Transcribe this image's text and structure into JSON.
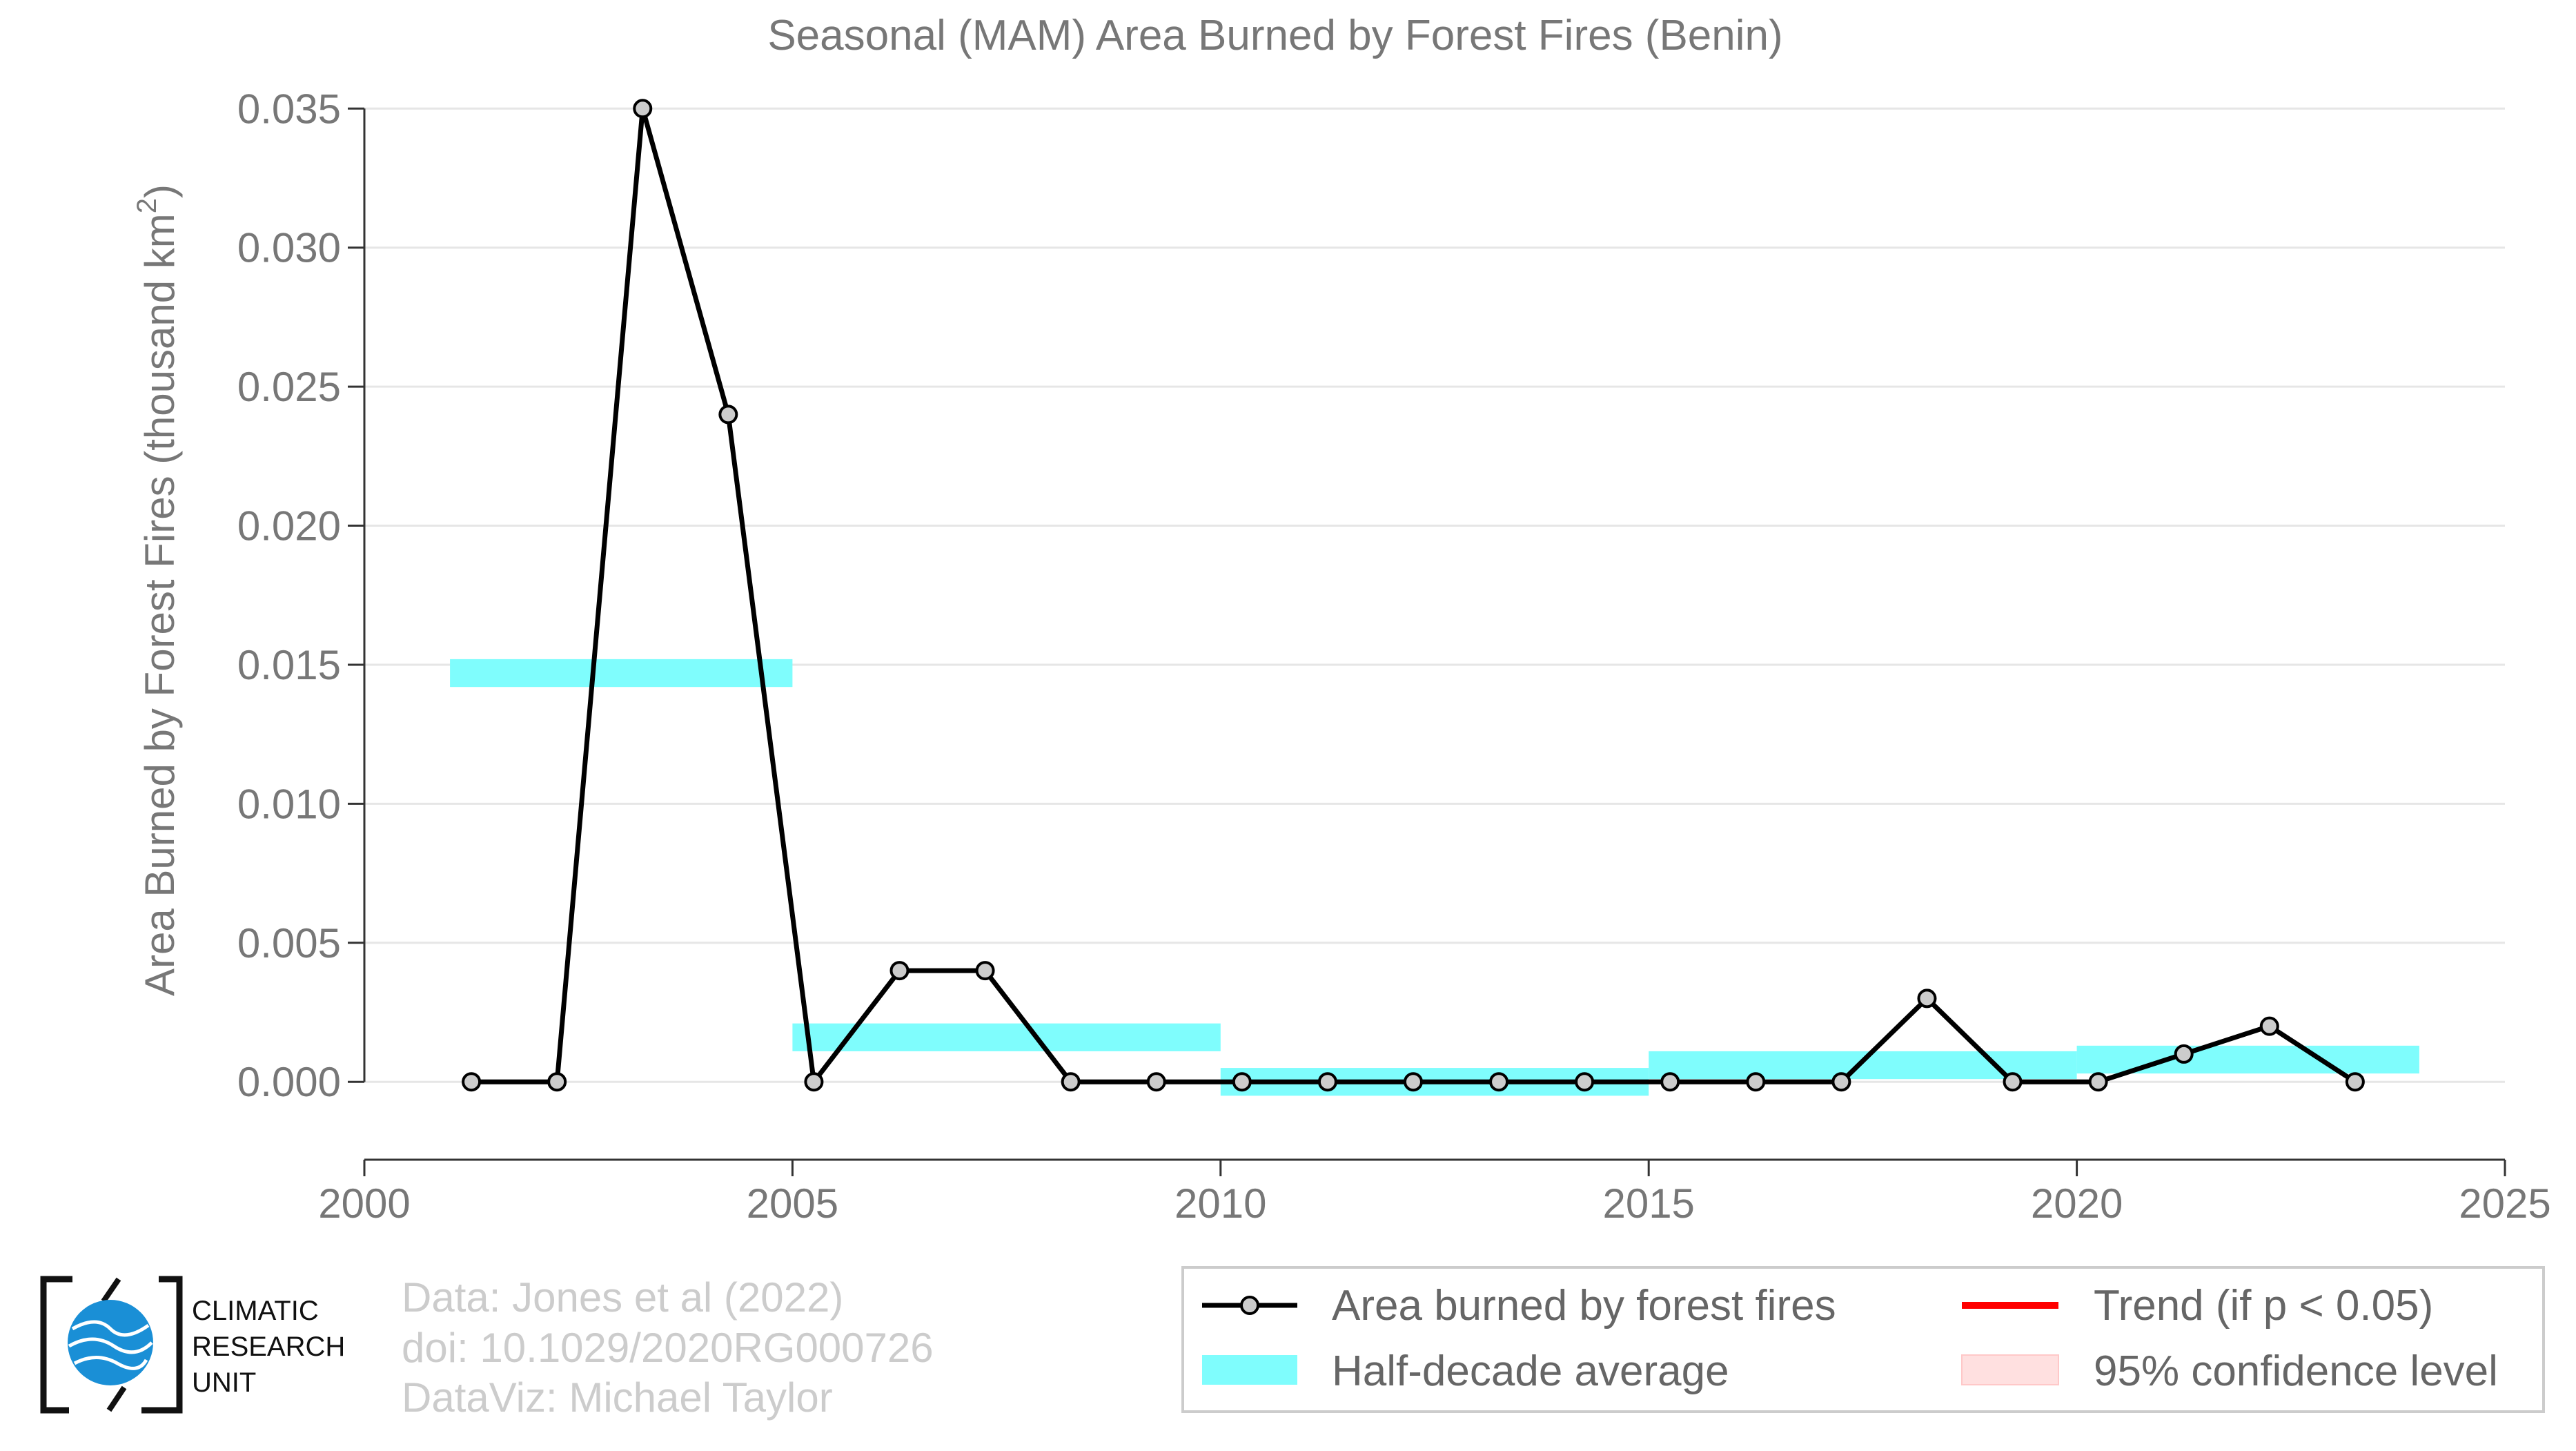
{
  "chart_data": {
    "type": "line",
    "title": "Seasonal (MAM) Area Burned by Forest Fires (Benin)",
    "ylabel": "Area Burned by Forest Fires (thousand km",
    "ylabel_sup": "2",
    "ylabel_close": ")",
    "xlim": [
      2000,
      2025
    ],
    "ylim": [
      -0.0028,
      0.036
    ],
    "x_ticks": [
      2000,
      2005,
      2010,
      2015,
      2020,
      2025
    ],
    "y_ticks": [
      0.0,
      0.005,
      0.01,
      0.015,
      0.02,
      0.025,
      0.03,
      0.035
    ],
    "y_tick_labels": [
      "0.000",
      "0.005",
      "0.010",
      "0.015",
      "0.020",
      "0.025",
      "0.030",
      "0.035"
    ],
    "grid": "horizontal",
    "series": [
      {
        "name": "Area burned by forest fires",
        "color": "#000000",
        "x": [
          2001.25,
          2002.25,
          2003.25,
          2004.25,
          2005.25,
          2006.25,
          2007.25,
          2008.25,
          2009.25,
          2010.25,
          2011.25,
          2012.25,
          2013.25,
          2014.25,
          2015.25,
          2016.25,
          2017.25,
          2018.25,
          2019.25,
          2020.25,
          2021.25,
          2022.25,
          2023.25
        ],
        "values": [
          0.0,
          0.0,
          0.035,
          0.024,
          0.0,
          0.004,
          0.004,
          0.0,
          0.0,
          0.0,
          0.0,
          0.0,
          0.0,
          0.0,
          0.0,
          0.0,
          0.0,
          0.003,
          0.0,
          0.0,
          0.001,
          0.002,
          0.0
        ]
      }
    ],
    "half_decade_average": {
      "name": "Half-decade average",
      "color": "#7ffdfd",
      "segments": [
        {
          "x0": 2001,
          "x1": 2005,
          "y": 0.0147
        },
        {
          "x0": 2005,
          "x1": 2010,
          "y": 0.0016
        },
        {
          "x0": 2010,
          "x1": 2015,
          "y": 0.0
        },
        {
          "x0": 2015,
          "x1": 2020,
          "y": 0.0006
        },
        {
          "x0": 2020,
          "x1": 2024,
          "y": 0.0008
        }
      ]
    },
    "legend": {
      "placement": "bottom-right",
      "items": [
        {
          "label": "Area burned by forest fires",
          "kind": "line-marker",
          "color": "#000000"
        },
        {
          "label": "Trend (if p < 0.05)",
          "kind": "line",
          "color": "#ff0000"
        },
        {
          "label": "Half-decade average",
          "kind": "band",
          "color": "#7ffdfd"
        },
        {
          "label": "95% confidence level",
          "kind": "band",
          "color": "#ffe0e0"
        }
      ]
    }
  },
  "credits": {
    "line1": "Data: Jones et al (2022)",
    "line2": "doi: 10.1029/2020RG000726",
    "line3": "DataViz: Michael Taylor"
  },
  "logo": {
    "line1": "CLIMATIC",
    "line2": "RESEARCH",
    "line3": "UNIT",
    "globe_color": "#1a8fd6"
  }
}
